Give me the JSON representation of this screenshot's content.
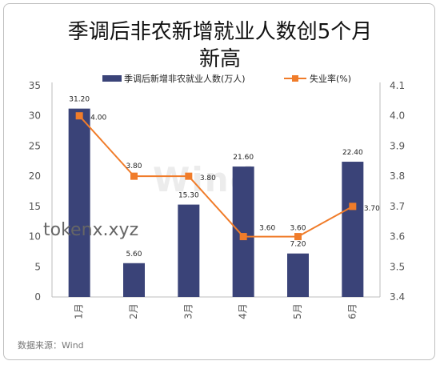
{
  "title_line1": "季调后非农新增就业人数创5个月",
  "title_line2": "新高",
  "watermark": "Wind",
  "overlay_text": "tokenx.xyz",
  "source": "数据来源：Wind",
  "colors": {
    "bar": "#3a4378",
    "line": "#f07c2a"
  },
  "chart_data": {
    "type": "bar",
    "title": "季调后非农新增就业人数创5个月新高",
    "categories": [
      "1月",
      "2月",
      "3月",
      "4月",
      "5月",
      "6月"
    ],
    "series": [
      {
        "name": "季调后新增非农就业人数(万人)",
        "type": "bar",
        "axis": "left",
        "values": [
          31.2,
          5.6,
          15.3,
          21.6,
          7.2,
          22.4
        ],
        "labels": [
          "31.20",
          "5.60",
          "15.30",
          "21.60",
          "7.20",
          "22.40"
        ]
      },
      {
        "name": "失业率(%)",
        "type": "line",
        "axis": "right",
        "values": [
          4.0,
          3.8,
          3.8,
          3.6,
          3.6,
          3.7
        ],
        "labels": [
          "4.00",
          "3.80",
          "3.80",
          "3.60",
          "3.60",
          "3.70"
        ]
      }
    ],
    "ylim_left": [
      0,
      35
    ],
    "yticks_left": [
      "0",
      "5",
      "10",
      "15",
      "20",
      "25",
      "30",
      "35"
    ],
    "ylim_right": [
      3.4,
      4.1
    ],
    "yticks_right": [
      "3.4",
      "3.5",
      "3.6",
      "3.7",
      "3.8",
      "3.9",
      "4.0",
      "4.1"
    ],
    "legend": "top",
    "grid": false
  }
}
